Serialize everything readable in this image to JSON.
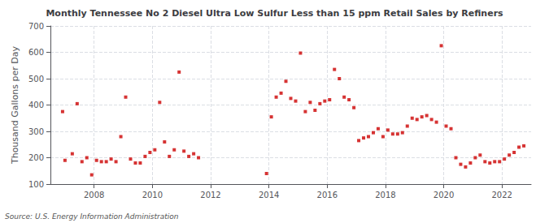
{
  "chart_data": {
    "type": "scatter",
    "title": "Monthly Tennessee No 2 Diesel Ultra Low Sulfur Less than 15 ppm Retail Sales by Refiners",
    "ylabel": "Thousand Gallons per Day",
    "annotations": [
      "Source: U.S. Energy Information Administration"
    ],
    "color": "#cc0000",
    "marker": "square",
    "grid": true,
    "xlim": [
      2006.5,
      2023.0
    ],
    "xticks": [
      2008,
      2010,
      2012,
      2014,
      2016,
      2018,
      2020,
      2022
    ],
    "ylim": [
      100,
      700
    ],
    "yticks": [
      100,
      200,
      300,
      400,
      500,
      600,
      700
    ],
    "x": [
      2006.917,
      2007.0,
      2007.25,
      2007.417,
      2007.583,
      2007.75,
      2007.917,
      2008.083,
      2008.25,
      2008.417,
      2008.583,
      2008.75,
      2008.917,
      2009.083,
      2009.25,
      2009.417,
      2009.583,
      2009.75,
      2009.917,
      2010.083,
      2010.25,
      2010.417,
      2010.583,
      2010.75,
      2010.917,
      2011.083,
      2011.25,
      2011.417,
      2011.583,
      2013.917,
      2014.083,
      2014.25,
      2014.417,
      2014.583,
      2014.75,
      2014.917,
      2015.083,
      2015.25,
      2015.417,
      2015.583,
      2015.75,
      2015.917,
      2016.083,
      2016.25,
      2016.417,
      2016.583,
      2016.75,
      2016.917,
      2017.083,
      2017.25,
      2017.417,
      2017.583,
      2017.75,
      2017.917,
      2018.083,
      2018.25,
      2018.417,
      2018.583,
      2018.75,
      2018.917,
      2019.083,
      2019.25,
      2019.417,
      2019.583,
      2019.75,
      2019.917,
      2020.083,
      2020.25,
      2020.417,
      2020.583,
      2020.75,
      2020.917,
      2021.083,
      2021.25,
      2021.417,
      2021.583,
      2021.75,
      2021.917,
      2022.083,
      2022.25,
      2022.417,
      2022.583,
      2022.75
    ],
    "values": [
      375,
      190,
      215,
      405,
      185,
      200,
      135,
      190,
      185,
      185,
      195,
      185,
      280,
      430,
      195,
      180,
      180,
      205,
      220,
      230,
      410,
      260,
      205,
      230,
      525,
      225,
      205,
      215,
      200,
      140,
      355,
      430,
      445,
      490,
      425,
      415,
      597,
      375,
      410,
      380,
      405,
      415,
      420,
      535,
      500,
      430,
      420,
      390,
      265,
      275,
      280,
      295,
      310,
      280,
      305,
      290,
      290,
      295,
      320,
      350,
      345,
      355,
      360,
      345,
      335,
      625,
      320,
      310,
      200,
      175,
      165,
      180,
      200,
      210,
      185,
      180,
      185,
      185,
      195,
      210,
      220,
      240,
      245
    ]
  }
}
